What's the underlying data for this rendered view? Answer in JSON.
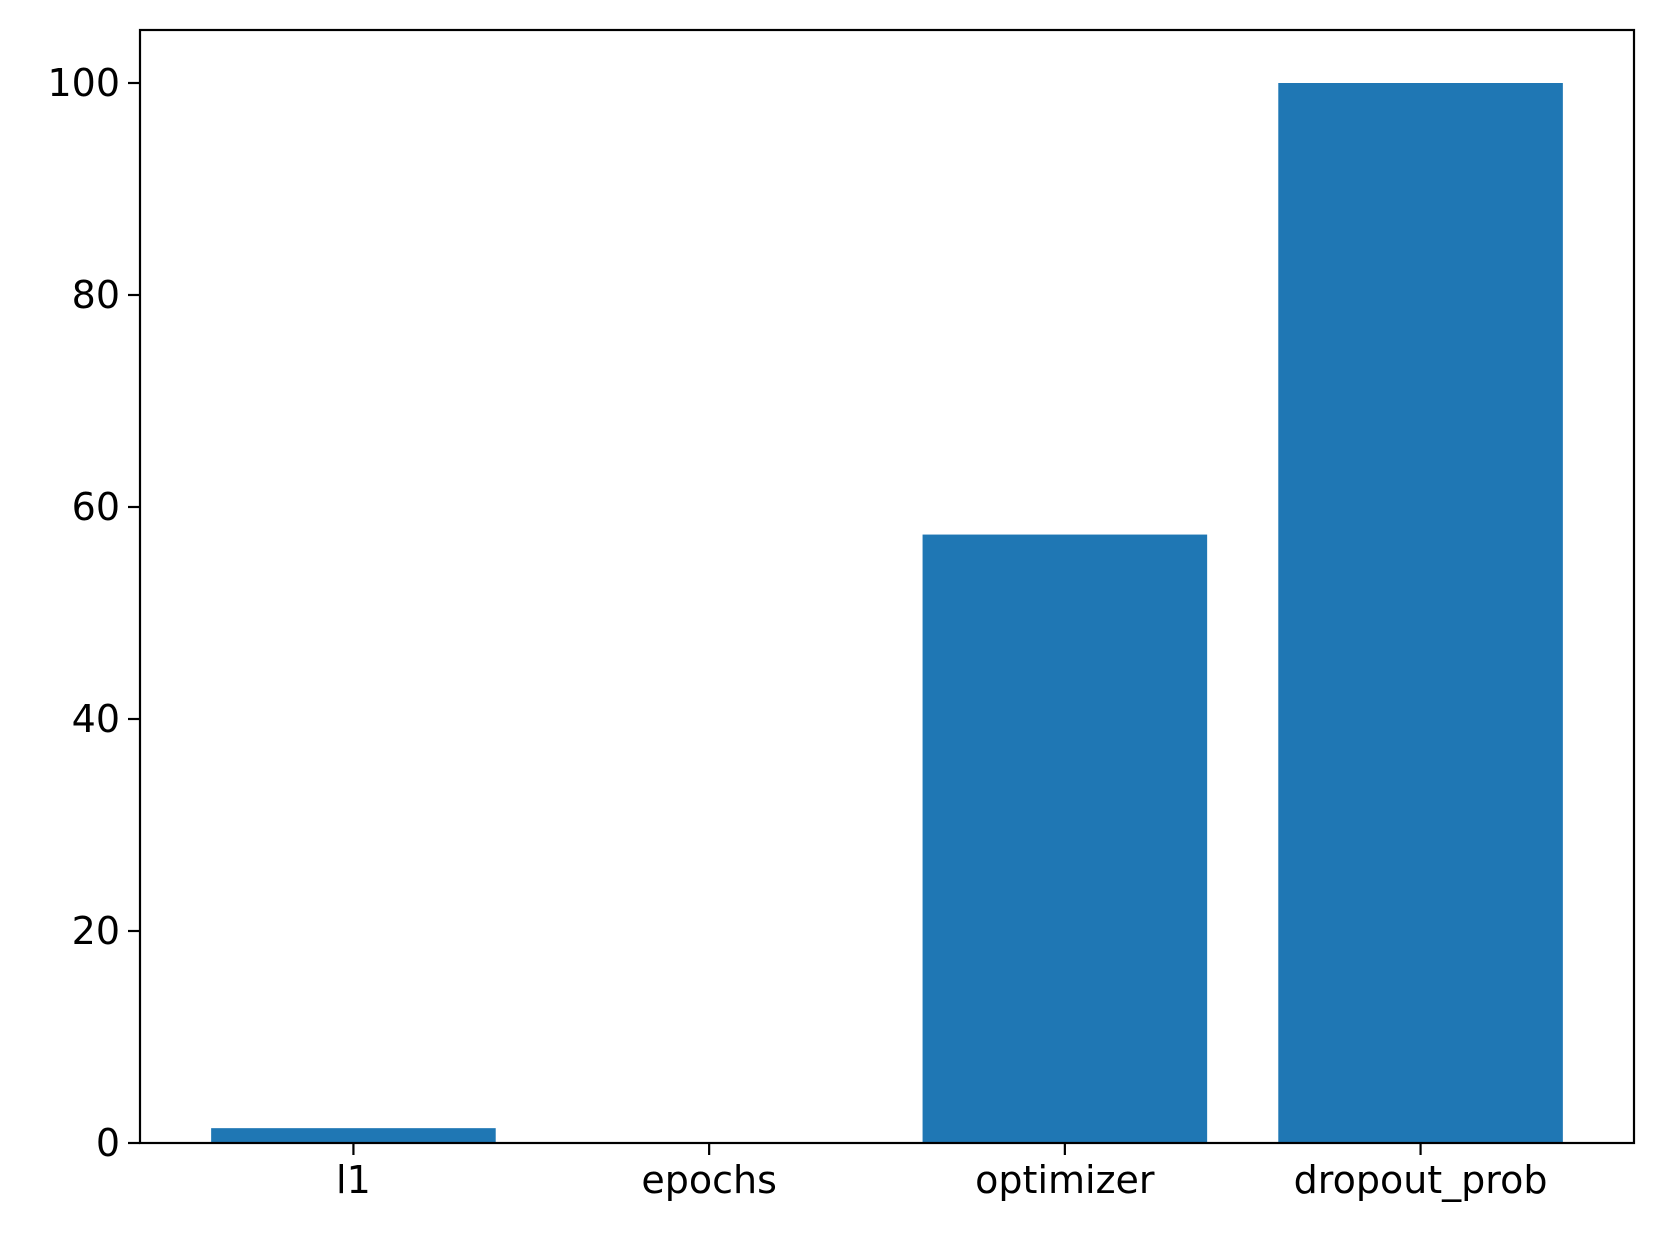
{
  "chart_data": {
    "type": "bar",
    "title": "",
    "xlabel": "",
    "ylabel": "",
    "categories": [
      "l1",
      "epochs",
      "optimizer",
      "dropout_prob"
    ],
    "values": [
      1.4,
      0.0,
      57.4,
      100.0
    ],
    "ylim": [
      0,
      105
    ],
    "yticks": [
      0,
      20,
      40,
      60,
      80,
      100
    ],
    "grid": false,
    "legend": "none",
    "bar_color": "#1f77b4"
  }
}
